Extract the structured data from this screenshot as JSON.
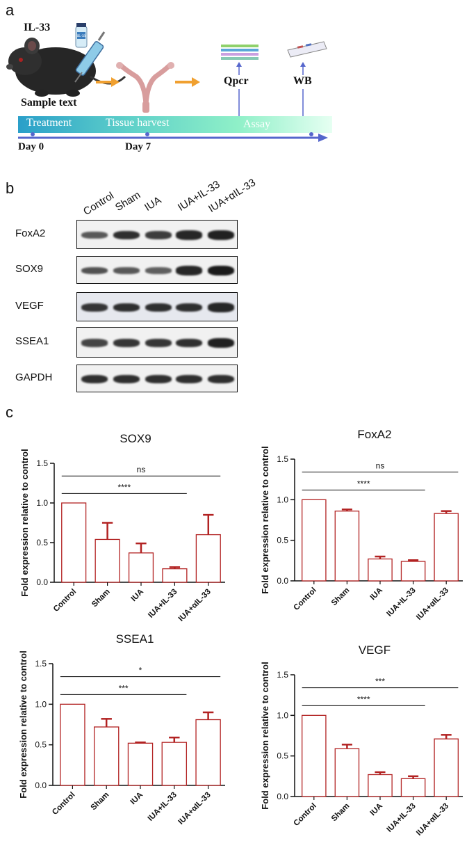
{
  "panels": {
    "a": "a",
    "b": "b",
    "c": "c"
  },
  "schematic": {
    "il33_label": "IL-33",
    "vial_label": "IL-33",
    "sample_text": "Sample text",
    "qpcr_label": "Qpcr",
    "wb_label": "WB",
    "stages": {
      "treatment": "Treatment",
      "harvest": "Tissue harvest",
      "assay": "Assay"
    },
    "days": {
      "day0": "Day 0",
      "day7": "Day 7"
    },
    "colors": {
      "timeline_start": "#2a9fc9",
      "timeline_end": "#bfffd8",
      "arrow": "#5566cc",
      "orange_arrow": "#f0a030"
    }
  },
  "western_blot": {
    "lanes": [
      "Control",
      "Sham",
      "IUA",
      "IUA+IL-33",
      "IUA+αIL-33"
    ],
    "rows": [
      {
        "label": "FoxA2",
        "intensity": [
          0.55,
          0.85,
          0.75,
          0.9,
          0.95
        ]
      },
      {
        "label": "SOX9",
        "intensity": [
          0.6,
          0.55,
          0.5,
          0.9,
          1.0
        ]
      },
      {
        "label": "VEGF",
        "intensity": [
          0.8,
          0.85,
          0.85,
          0.85,
          0.9
        ]
      },
      {
        "label": "SSEA1",
        "intensity": [
          0.7,
          0.8,
          0.8,
          0.85,
          0.95
        ]
      },
      {
        "label": "GAPDH",
        "intensity": [
          0.85,
          0.85,
          0.85,
          0.85,
          0.85
        ]
      }
    ]
  },
  "chart_data": [
    {
      "type": "bar",
      "title": "SOX9",
      "ylabel": "Fold expression relative to control",
      "categories": [
        "Control",
        "Sham",
        "IUA",
        "IUA+IL-33",
        "IUA+αIL-33"
      ],
      "values": [
        1.0,
        0.54,
        0.37,
        0.17,
        0.6
      ],
      "errors": [
        0,
        0.21,
        0.12,
        0.02,
        0.25
      ],
      "ylim": [
        0,
        1.5
      ],
      "yticks": [
        "0.0",
        "0.5",
        "1.0",
        "1.5"
      ],
      "significance": [
        {
          "label": "ns",
          "from": 0,
          "to": 4
        },
        {
          "label": "****",
          "from": 0,
          "to": 3
        }
      ],
      "color": "#b22222"
    },
    {
      "type": "bar",
      "title": "FoxA2",
      "ylabel": "Fold expression relative to control",
      "categories": [
        "Control",
        "Sham",
        "IUA",
        "IUA+IL-33",
        "IUA+αIL-33"
      ],
      "values": [
        1.0,
        0.86,
        0.27,
        0.24,
        0.83
      ],
      "errors": [
        0,
        0.02,
        0.03,
        0.015,
        0.03
      ],
      "ylim": [
        0,
        1.5
      ],
      "yticks": [
        "0.0",
        "0.5",
        "1.0",
        "1.5"
      ],
      "significance": [
        {
          "label": "ns",
          "from": 0,
          "to": 4
        },
        {
          "label": "****",
          "from": 0,
          "to": 3
        }
      ],
      "color": "#b22222"
    },
    {
      "type": "bar",
      "title": "SSEA1",
      "ylabel": "Fold expression relative to control",
      "categories": [
        "Control",
        "Sham",
        "IUA",
        "IUA+IL-33",
        "IUA+αIL-33"
      ],
      "values": [
        1.0,
        0.72,
        0.52,
        0.53,
        0.81
      ],
      "errors": [
        0,
        0.1,
        0.01,
        0.06,
        0.09
      ],
      "ylim": [
        0,
        1.5
      ],
      "yticks": [
        "0.0",
        "0.5",
        "1.0",
        "1.5"
      ],
      "significance": [
        {
          "label": "*",
          "from": 0,
          "to": 4
        },
        {
          "label": "***",
          "from": 0,
          "to": 3
        }
      ],
      "color": "#b22222"
    },
    {
      "type": "bar",
      "title": "VEGF",
      "ylabel": "Fold expression relative to control",
      "categories": [
        "Control",
        "Sham",
        "IUA",
        "IUA+IL-33",
        "IUA+αIL-33"
      ],
      "values": [
        1.0,
        0.59,
        0.27,
        0.22,
        0.71
      ],
      "errors": [
        0,
        0.05,
        0.03,
        0.03,
        0.05
      ],
      "ylim": [
        0,
        1.5
      ],
      "yticks": [
        "0.0",
        "0.5",
        "1.0",
        "1.5"
      ],
      "significance": [
        {
          "label": "***",
          "from": 0,
          "to": 4
        },
        {
          "label": "****",
          "from": 0,
          "to": 3
        }
      ],
      "color": "#b22222"
    }
  ]
}
